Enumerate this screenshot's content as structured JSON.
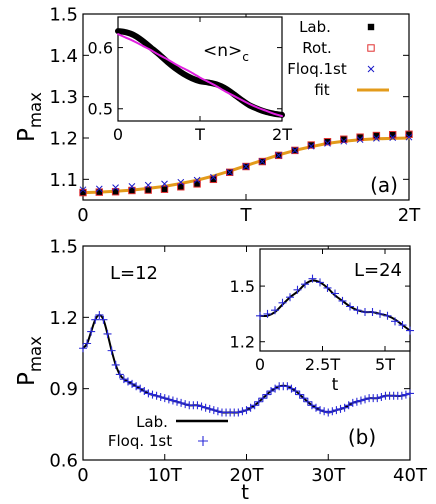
{
  "colors": {
    "lab": "#000000",
    "rot": "#e03030",
    "floq": "#1a1ac8",
    "fit": "#e39b1b",
    "inset_line": "#e020e0",
    "lab_line_b": "#000000",
    "floq_b": "#2a2ad8"
  },
  "chart_data": [
    {
      "id": "panel-a",
      "type": "scatter",
      "panel_label": "(a)",
      "ylabel_main": "P",
      "ylabel_sub": "max",
      "xlim": [
        0,
        2
      ],
      "ylim": [
        1.05,
        1.5
      ],
      "xticks": [
        0,
        1,
        2
      ],
      "xticklabels": [
        "0",
        "T",
        "2T"
      ],
      "yticks": [
        1.1,
        1.2,
        1.3,
        1.4,
        1.5
      ],
      "yticklabels": [
        "1.1",
        "1.2",
        "1.3",
        "1.4",
        "1.5"
      ],
      "legend_position": "top-right",
      "series": [
        {
          "name": "Lab.",
          "marker": "filled-square",
          "x": [
            0.0,
            0.1,
            0.2,
            0.3,
            0.4,
            0.5,
            0.6,
            0.7,
            0.8,
            0.9,
            1.0,
            1.1,
            1.2,
            1.3,
            1.4,
            1.5,
            1.6,
            1.7,
            1.8,
            1.9,
            2.0
          ],
          "y": [
            1.068,
            1.069,
            1.07,
            1.073,
            1.074,
            1.076,
            1.082,
            1.089,
            1.1,
            1.117,
            1.131,
            1.143,
            1.158,
            1.17,
            1.183,
            1.191,
            1.197,
            1.202,
            1.206,
            1.208,
            1.209
          ]
        },
        {
          "name": "Rot.",
          "marker": "open-square",
          "x": [
            0.0,
            0.1,
            0.2,
            0.3,
            0.4,
            0.5,
            0.6,
            0.7,
            0.8,
            0.9,
            1.0,
            1.1,
            1.2,
            1.3,
            1.4,
            1.5,
            1.6,
            1.7,
            1.8,
            1.9,
            2.0
          ],
          "y": [
            1.068,
            1.069,
            1.07,
            1.073,
            1.074,
            1.076,
            1.082,
            1.089,
            1.1,
            1.117,
            1.131,
            1.143,
            1.158,
            1.17,
            1.183,
            1.191,
            1.197,
            1.202,
            1.206,
            1.208,
            1.209
          ]
        },
        {
          "name": "Floq.1st",
          "marker": "cross",
          "x": [
            0.0,
            0.1,
            0.2,
            0.3,
            0.4,
            0.5,
            0.6,
            0.7,
            0.8,
            0.9,
            1.0,
            1.1,
            1.2,
            1.3,
            1.4,
            1.5,
            1.6,
            1.7,
            1.8,
            1.9,
            2.0
          ],
          "y": [
            1.075,
            1.077,
            1.08,
            1.083,
            1.086,
            1.089,
            1.093,
            1.098,
            1.105,
            1.117,
            1.131,
            1.143,
            1.158,
            1.17,
            1.18,
            1.187,
            1.192,
            1.196,
            1.199,
            1.201,
            1.202
          ]
        },
        {
          "name": "fit",
          "marker": "line",
          "x": [
            0.0,
            0.1,
            0.2,
            0.3,
            0.4,
            0.5,
            0.6,
            0.7,
            0.8,
            0.9,
            1.0,
            1.1,
            1.2,
            1.3,
            1.4,
            1.5,
            1.6,
            1.7,
            1.8,
            1.9,
            2.0
          ],
          "y": [
            1.068,
            1.069,
            1.071,
            1.074,
            1.078,
            1.083,
            1.09,
            1.098,
            1.108,
            1.12,
            1.133,
            1.146,
            1.159,
            1.17,
            1.179,
            1.187,
            1.192,
            1.196,
            1.198,
            1.199,
            1.2
          ]
        }
      ],
      "inset": {
        "label": "<n>",
        "label_sub": "c",
        "xlim": [
          0,
          2
        ],
        "ylim": [
          0.48,
          0.65
        ],
        "xticks": [
          0,
          1,
          2
        ],
        "xticklabels": [
          "0",
          "T",
          "2T"
        ],
        "yticks": [
          0.5,
          0.6
        ],
        "yticklabels": [
          "0.5",
          "0.6"
        ],
        "series": [
          {
            "name": "Lab. (inset)",
            "style": "thick-line",
            "x": [
              0.0,
              0.1,
              0.2,
              0.3,
              0.4,
              0.5,
              0.6,
              0.7,
              0.8,
              0.9,
              1.0,
              1.1,
              1.2,
              1.3,
              1.4,
              1.5,
              1.6,
              1.7,
              1.8,
              1.9,
              2.0
            ],
            "y": [
              0.627,
              0.625,
              0.62,
              0.611,
              0.6,
              0.589,
              0.577,
              0.566,
              0.557,
              0.55,
              0.545,
              0.543,
              0.54,
              0.534,
              0.525,
              0.515,
              0.506,
              0.5,
              0.495,
              0.492,
              0.49
            ]
          },
          {
            "name": "fit (inset)",
            "style": "thin-line",
            "x": [
              0.0,
              0.1,
              0.2,
              0.3,
              0.4,
              0.5,
              0.6,
              0.7,
              0.8,
              0.9,
              1.0,
              1.1,
              1.2,
              1.3,
              1.4,
              1.5,
              1.6,
              1.7,
              1.8,
              1.9,
              2.0
            ],
            "y": [
              0.622,
              0.616,
              0.61,
              0.603,
              0.596,
              0.588,
              0.581,
              0.573,
              0.566,
              0.559,
              0.551,
              0.544,
              0.537,
              0.529,
              0.522,
              0.515,
              0.508,
              0.502,
              0.497,
              0.492,
              0.488
            ]
          }
        ]
      }
    },
    {
      "id": "panel-b",
      "type": "line",
      "panel_label": "(b)",
      "annotation": "L=12",
      "xlabel": "t",
      "ylabel_main": "P",
      "ylabel_sub": "max",
      "xlim": [
        0,
        40
      ],
      "ylim": [
        0.6,
        1.5
      ],
      "xticks": [
        0,
        10,
        20,
        30,
        40
      ],
      "xticklabels": [
        "0",
        "10T",
        "20T",
        "30T",
        "40T"
      ],
      "yticks": [
        0.6,
        0.9,
        1.2,
        1.5
      ],
      "yticklabels": [
        "0.6",
        "0.9",
        "1.2",
        "1.5"
      ],
      "legend_position": "bottom-left",
      "series": [
        {
          "name": "Lab.",
          "style": "line",
          "x": [
            0,
            0.5,
            1,
            1.5,
            2,
            2.5,
            3,
            3.5,
            4,
            4.5,
            5,
            6,
            7,
            8,
            9,
            10,
            11,
            12,
            13,
            14,
            15,
            16,
            17,
            18,
            19,
            20,
            21,
            22,
            23,
            24,
            25,
            26,
            27,
            28,
            29,
            30,
            31,
            32,
            33,
            34,
            35,
            36,
            37,
            38,
            39,
            40
          ],
          "y": [
            1.07,
            1.09,
            1.14,
            1.19,
            1.21,
            1.19,
            1.13,
            1.06,
            1.0,
            0.96,
            0.94,
            0.92,
            0.9,
            0.88,
            0.87,
            0.86,
            0.85,
            0.84,
            0.83,
            0.83,
            0.82,
            0.81,
            0.8,
            0.8,
            0.8,
            0.81,
            0.83,
            0.86,
            0.89,
            0.91,
            0.91,
            0.89,
            0.86,
            0.83,
            0.81,
            0.8,
            0.81,
            0.82,
            0.84,
            0.85,
            0.86,
            0.86,
            0.87,
            0.87,
            0.87,
            0.88
          ]
        },
        {
          "name": "Floq. 1st",
          "style": "plus-markers",
          "x": [
            0,
            0.5,
            1,
            1.5,
            2,
            2.5,
            3,
            3.5,
            4,
            4.5,
            5,
            6,
            7,
            8,
            9,
            10,
            11,
            12,
            13,
            14,
            15,
            16,
            17,
            18,
            19,
            20,
            21,
            22,
            23,
            24,
            25,
            26,
            27,
            28,
            29,
            30,
            31,
            32,
            33,
            34,
            35,
            36,
            37,
            38,
            39,
            40
          ],
          "y": [
            1.07,
            1.09,
            1.14,
            1.19,
            1.21,
            1.19,
            1.13,
            1.06,
            1.0,
            0.96,
            0.94,
            0.92,
            0.9,
            0.88,
            0.87,
            0.86,
            0.85,
            0.84,
            0.83,
            0.83,
            0.82,
            0.81,
            0.8,
            0.8,
            0.8,
            0.81,
            0.83,
            0.86,
            0.89,
            0.91,
            0.91,
            0.89,
            0.86,
            0.83,
            0.81,
            0.8,
            0.81,
            0.82,
            0.84,
            0.85,
            0.86,
            0.86,
            0.87,
            0.87,
            0.87,
            0.88
          ]
        }
      ],
      "inset": {
        "label": "L=24",
        "xlabel": "t",
        "xlim": [
          0,
          6
        ],
        "ylim": [
          1.15,
          1.7
        ],
        "xticks": [
          0,
          2.5,
          5
        ],
        "xticklabels": [
          "0",
          "2.5T",
          "5T"
        ],
        "yticks": [
          1.2,
          1.5
        ],
        "yticklabels": [
          "1.2",
          "1.5"
        ],
        "series": [
          {
            "name": "Lab. (inset)",
            "style": "line",
            "x": [
              0,
              0.3,
              0.6,
              0.9,
              1.2,
              1.5,
              1.8,
              2.1,
              2.4,
              2.7,
              3.0,
              3.3,
              3.6,
              3.9,
              4.2,
              4.5,
              4.8,
              5.1,
              5.4,
              5.7,
              6.0
            ],
            "y": [
              1.34,
              1.34,
              1.36,
              1.4,
              1.44,
              1.47,
              1.51,
              1.53,
              1.52,
              1.49,
              1.45,
              1.42,
              1.39,
              1.37,
              1.36,
              1.36,
              1.35,
              1.34,
              1.32,
              1.29,
              1.26
            ]
          },
          {
            "name": "Floq. 1st (inset)",
            "style": "plus-markers",
            "x": [
              0,
              0.3,
              0.6,
              0.9,
              1.2,
              1.5,
              1.8,
              2.1,
              2.4,
              2.7,
              3.0,
              3.3,
              3.6,
              3.9,
              4.2,
              4.5,
              4.8,
              5.1,
              5.4,
              5.7,
              6.0
            ],
            "y": [
              1.34,
              1.35,
              1.37,
              1.41,
              1.44,
              1.48,
              1.51,
              1.54,
              1.52,
              1.49,
              1.46,
              1.42,
              1.39,
              1.37,
              1.36,
              1.36,
              1.35,
              1.34,
              1.31,
              1.29,
              1.26
            ]
          }
        ]
      }
    }
  ]
}
